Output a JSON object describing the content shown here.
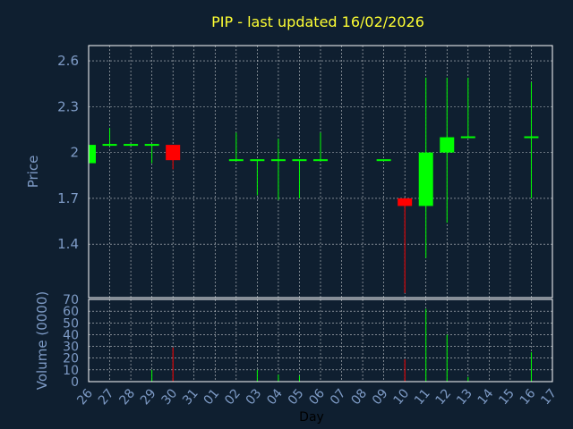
{
  "title": "PIP - last updated 16/02/2026",
  "chart_data": {
    "type": "candlestick",
    "title": "PIP - last updated 16/02/2026",
    "xlabel": "Day",
    "ylabel_price": "Price",
    "ylabel_volume": "Volume (0000)",
    "price_ticks": [
      "2.6",
      "2.3",
      "2",
      "1.7",
      "1.4"
    ],
    "price_tick_values": [
      2.6,
      2.3,
      2.0,
      1.7,
      1.4
    ],
    "price_ylim": [
      1.05,
      2.7
    ],
    "volume_ticks": [
      "70",
      "60",
      "50",
      "40",
      "30",
      "20",
      "10",
      "0"
    ],
    "volume_tick_values": [
      70,
      60,
      50,
      40,
      30,
      20,
      10,
      0
    ],
    "volume_ylim": [
      0,
      70
    ],
    "x_labels": [
      "26",
      "27",
      "28",
      "29",
      "30",
      "31",
      "01",
      "02",
      "03",
      "04",
      "05",
      "06",
      "07",
      "08",
      "09",
      "10",
      "11",
      "12",
      "13",
      "14",
      "15",
      "16",
      "17"
    ],
    "grid": true,
    "up_color": "#00ff00",
    "down_color": "#ff0000",
    "candles": [
      {
        "day": "26",
        "open": 1.93,
        "close": 2.05,
        "high": 2.05,
        "low": 1.93
      },
      {
        "day": "27",
        "open": 2.04,
        "close": 2.05,
        "high": 2.16,
        "low": 2.04
      },
      {
        "day": "28",
        "open": 2.05,
        "close": 2.05,
        "high": 2.05,
        "low": 2.05
      },
      {
        "day": "29",
        "open": 2.04,
        "close": 2.05,
        "high": 2.05,
        "low": 1.93
      },
      {
        "day": "30",
        "open": 2.05,
        "close": 1.95,
        "high": 2.05,
        "low": 1.89
      },
      {
        "day": "02",
        "open": 1.95,
        "close": 1.95,
        "high": 2.13,
        "low": 1.95
      },
      {
        "day": "03",
        "open": 1.95,
        "close": 1.95,
        "high": 1.95,
        "low": 1.72
      },
      {
        "day": "04",
        "open": 1.95,
        "close": 1.95,
        "high": 2.09,
        "low": 1.69
      },
      {
        "day": "05",
        "open": 1.95,
        "close": 1.95,
        "high": 1.95,
        "low": 1.7
      },
      {
        "day": "06",
        "open": 1.95,
        "close": 1.95,
        "high": 2.13,
        "low": 1.95
      },
      {
        "day": "09",
        "open": 1.95,
        "close": 1.95,
        "high": 1.95,
        "low": 1.95
      },
      {
        "day": "10",
        "open": 1.7,
        "close": 1.65,
        "high": 1.7,
        "low": 1.08
      },
      {
        "day": "11",
        "open": 1.65,
        "close": 2.0,
        "high": 2.49,
        "low": 1.31
      },
      {
        "day": "12",
        "open": 2.0,
        "close": 2.1,
        "high": 2.49,
        "low": 1.54
      },
      {
        "day": "13",
        "open": 2.1,
        "close": 2.1,
        "high": 2.49,
        "low": 2.1
      },
      {
        "day": "16",
        "open": 2.1,
        "close": 2.1,
        "high": 2.46,
        "low": 1.7
      }
    ],
    "volume": [
      {
        "day": "26",
        "value": 0,
        "color": "#00ff00"
      },
      {
        "day": "29",
        "value": 10,
        "color": "#00ff00"
      },
      {
        "day": "30",
        "value": 29,
        "color": "#ff0000"
      },
      {
        "day": "03",
        "value": 10,
        "color": "#00ff00"
      },
      {
        "day": "04",
        "value": 6,
        "color": "#00ff00"
      },
      {
        "day": "05",
        "value": 5,
        "color": "#00ff00"
      },
      {
        "day": "10",
        "value": 19,
        "color": "#ff0000"
      },
      {
        "day": "11",
        "value": 62,
        "color": "#00ff00"
      },
      {
        "day": "12",
        "value": 40,
        "color": "#00ff00"
      },
      {
        "day": "13",
        "value": 4,
        "color": "#00ff00"
      },
      {
        "day": "16",
        "value": 25,
        "color": "#00ff00"
      }
    ]
  }
}
